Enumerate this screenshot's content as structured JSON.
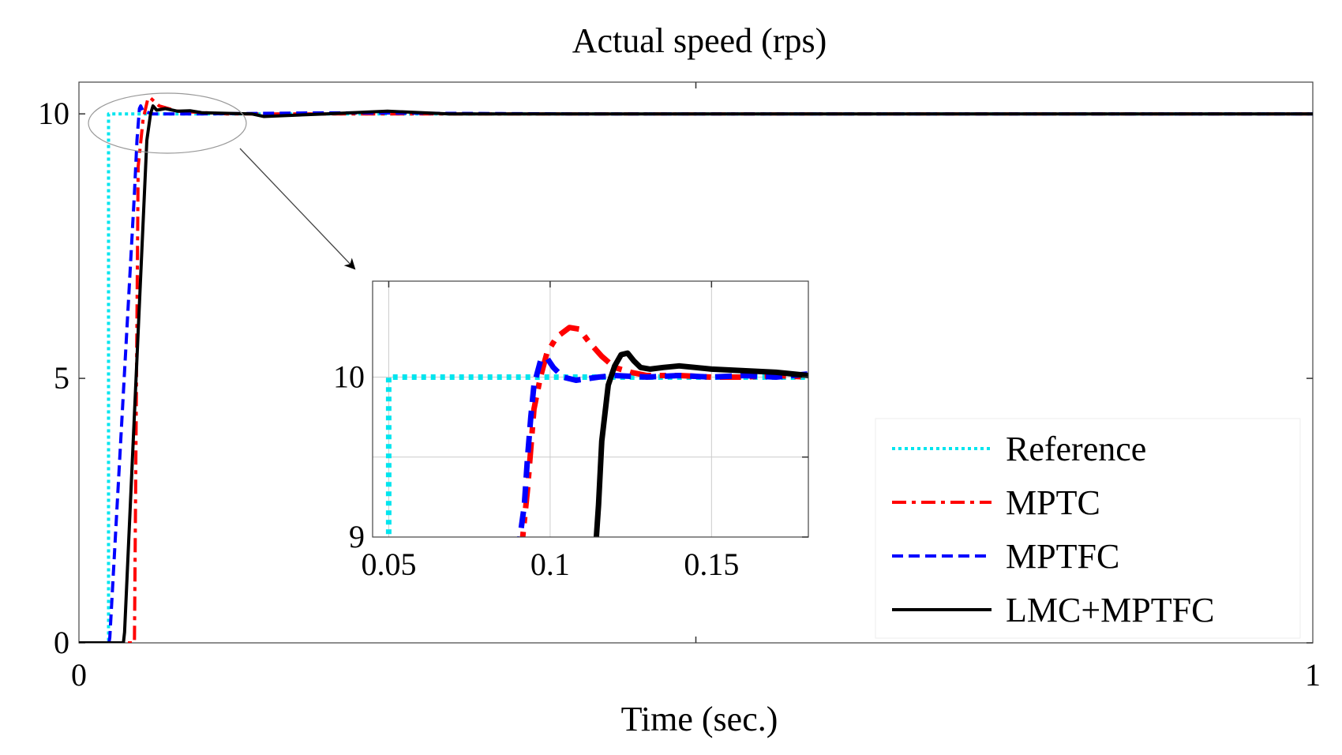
{
  "chart_data": {
    "type": "line",
    "title": "Actual speed (rps)",
    "xlabel": "Time (sec.)",
    "ylabel": "",
    "xlim": [
      0,
      1
    ],
    "ylim": [
      0,
      10.6
    ],
    "xticks": [
      0,
      1
    ],
    "xtick_labels": [
      "0",
      "1"
    ],
    "yticks": [
      0,
      5,
      10
    ],
    "ytick_labels": [
      "0",
      "5",
      "10"
    ],
    "legend": {
      "placement": "bottom-right",
      "entries": [
        "Reference",
        "MPTC",
        "MPTFC",
        "LMC+MPTFC"
      ]
    },
    "series": [
      {
        "name": "Reference",
        "color": "#00e5ee",
        "style": "dotted",
        "x": [
          0,
          0.024,
          0.024,
          1.0
        ],
        "y": [
          0,
          0,
          10,
          10
        ]
      },
      {
        "name": "MPTC",
        "color": "#ff0000",
        "style": "dashdot",
        "x": [
          0,
          0.024,
          0.025,
          0.045,
          0.048,
          0.052,
          0.056,
          0.058,
          0.065,
          0.08,
          0.12,
          0.2,
          0.4,
          0.6,
          0.8,
          1.0
        ],
        "y": [
          0,
          0,
          0,
          0,
          9.0,
          9.9,
          10.3,
          10.3,
          10.15,
          10.05,
          10.0,
          10.0,
          10.0,
          10.0,
          10.0,
          10.0
        ]
      },
      {
        "name": "MPTFC",
        "color": "#0000ff",
        "style": "dashed",
        "x": [
          0,
          0.024,
          0.025,
          0.045,
          0.047,
          0.049,
          0.05,
          0.052,
          0.06,
          0.1,
          0.2,
          0.4,
          0.6,
          0.8,
          1.0
        ],
        "y": [
          -0.05,
          -0.05,
          0.1,
          8.5,
          9.5,
          10.1,
          10.15,
          10.05,
          10.0,
          10.0,
          10.02,
          10.0,
          10.0,
          10.0,
          10.0
        ]
      },
      {
        "name": "LMC+MPTFC",
        "color": "#000000",
        "style": "solid",
        "x": [
          0,
          0.036,
          0.037,
          0.055,
          0.058,
          0.06,
          0.063,
          0.07,
          0.08,
          0.09,
          0.1,
          0.14,
          0.15,
          0.2,
          0.25,
          0.3,
          0.4,
          0.5,
          0.6,
          0.8,
          1.0
        ],
        "y": [
          0,
          0,
          0.2,
          9.5,
          10.0,
          10.15,
          10.07,
          10.1,
          10.05,
          10.06,
          10.02,
          10.0,
          9.95,
          10.0,
          10.05,
          10.0,
          10.0,
          10.0,
          10.0,
          10.0,
          10.0
        ]
      }
    ],
    "inset": {
      "xlim": [
        0.045,
        0.18
      ],
      "ylim": [
        9.0,
        10.6
      ],
      "xticks": [
        0.05,
        0.1,
        0.15
      ],
      "xtick_labels": [
        "0.05",
        "0.1",
        "0.15"
      ],
      "yticks": [
        9,
        9.5,
        10
      ],
      "ytick_labels": [
        "9",
        "",
        "10"
      ],
      "series": [
        {
          "name": "Reference",
          "x": [
            0.05,
            0.05,
            0.18
          ],
          "y": [
            8.9,
            10.0,
            10.0
          ]
        },
        {
          "name": "MPTC",
          "x": [
            0.091,
            0.093,
            0.095,
            0.097,
            0.099,
            0.102,
            0.106,
            0.109,
            0.112,
            0.116,
            0.12,
            0.125,
            0.13,
            0.14,
            0.15,
            0.16,
            0.17,
            0.18
          ],
          "y": [
            8.9,
            9.3,
            9.8,
            10.0,
            10.15,
            10.25,
            10.31,
            10.3,
            10.22,
            10.13,
            10.06,
            10.03,
            10.01,
            10.01,
            10.0,
            10.0,
            10.01,
            10.0
          ]
        },
        {
          "name": "MPTFC",
          "x": [
            0.09,
            0.092,
            0.093,
            0.094,
            0.095,
            0.097,
            0.099,
            0.101,
            0.104,
            0.108,
            0.115,
            0.12,
            0.13,
            0.14,
            0.15,
            0.16,
            0.17,
            0.18
          ],
          "y": [
            8.9,
            9.2,
            9.5,
            9.75,
            9.95,
            10.1,
            10.12,
            10.06,
            10.0,
            9.98,
            10.0,
            10.01,
            10.0,
            10.01,
            10.0,
            10.01,
            10.0,
            10.02
          ]
        },
        {
          "name": "LMC+MPTFC",
          "x": [
            0.114,
            0.115,
            0.116,
            0.118,
            0.12,
            0.122,
            0.124,
            0.126,
            0.128,
            0.131,
            0.135,
            0.14,
            0.145,
            0.15,
            0.16,
            0.17,
            0.18
          ],
          "y": [
            8.9,
            9.2,
            9.6,
            9.95,
            10.07,
            10.14,
            10.15,
            10.1,
            10.06,
            10.05,
            10.06,
            10.07,
            10.06,
            10.05,
            10.04,
            10.03,
            10.01
          ]
        }
      ]
    }
  }
}
